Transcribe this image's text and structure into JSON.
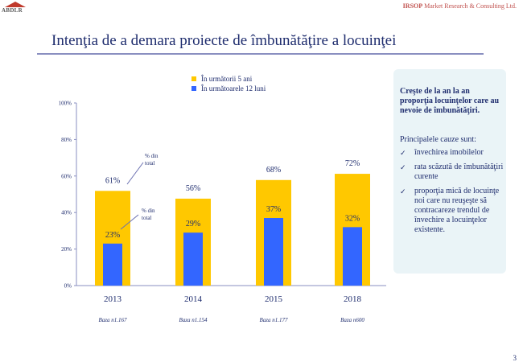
{
  "header": {
    "logo_text": "ABDLR",
    "brand_bold": "IRSOP",
    "brand_rest": " Market Research & Consulting Ltd."
  },
  "title": "Intenţia de a demara proiecte de îmbunătăţire a locuinţei",
  "legend": [
    {
      "label": "În următorii 5 ani",
      "color": "#ffc800"
    },
    {
      "label": "În următoarele 12 luni",
      "color": "#3366ff"
    }
  ],
  "chart_data": {
    "type": "bar",
    "title": "Intenţia de a demara proiecte de îmbunătăţire a locuinţei",
    "categories": [
      "2013",
      "2014",
      "2015",
      "2018"
    ],
    "series": [
      {
        "name": "În următorii 5 ani",
        "color": "#ffc800",
        "values": [
          61,
          56,
          68,
          72
        ],
        "labels": [
          "61%",
          "56%",
          "68%",
          "72%"
        ]
      },
      {
        "name": "În următoarele 12 luni",
        "color": "#3366ff",
        "values": [
          23,
          29,
          37,
          32
        ],
        "labels": [
          "23%",
          "29%",
          "37%",
          "32%"
        ]
      }
    ],
    "bases": [
      "Baza n1.167",
      "Baza n1.154",
      "Baza n1.177",
      "Baza n600"
    ],
    "annotations": [
      "% din total",
      "% din total"
    ],
    "yticks": [
      "0%",
      "20%",
      "40%",
      "60%",
      "80%",
      "100%"
    ],
    "ylim": [
      0,
      100
    ],
    "xlabel": "",
    "ylabel": "",
    "grid": false,
    "legend_position": "top-center"
  },
  "info_box": {
    "headline": "Creşte de la an la an proporţia locuinţelor care au nevoie de îmbunătăţiri.",
    "subhead": "Principalele cauze sunt:",
    "check_icon": "✓",
    "items": [
      "învechirea imobilelor",
      "rata scăzută de îmbunătăţiri curente",
      "proporţia mică de locuinţe noi care nu reuşeşte să contracareze trendul de învechire a locuinţelor existente."
    ]
  },
  "page_number": "3"
}
